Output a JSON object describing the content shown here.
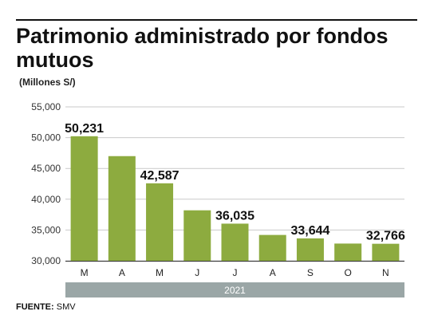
{
  "header": {
    "title": "Patrimonio administrado por fondos mutuos",
    "unit": "(Millones S/)"
  },
  "footer": {
    "source_label": "FUENTE:",
    "source_value": "SMV"
  },
  "colors": {
    "bar": "#8dab3f",
    "year_band": "#9aa6a6",
    "grid": "#c9c9c9"
  },
  "chart_data": {
    "type": "bar",
    "title": "Patrimonio administrado por fondos mutuos",
    "ylabel": "(Millones S/)",
    "categories": [
      "M",
      "A",
      "M",
      "J",
      "J",
      "A",
      "S",
      "O",
      "N"
    ],
    "group_label": "2021",
    "values": [
      50231,
      47000,
      42587,
      38200,
      36035,
      34200,
      33644,
      32800,
      32766
    ],
    "data_labels": [
      "50,231",
      "",
      "42,587",
      "",
      "36,035",
      "",
      "33,644",
      "",
      "32,766"
    ],
    "y_ticks": [
      "30,000",
      "35,000",
      "40,000",
      "45,000",
      "50,000",
      "55,000"
    ],
    "ylim": [
      30000,
      55000
    ],
    "grid": true
  }
}
